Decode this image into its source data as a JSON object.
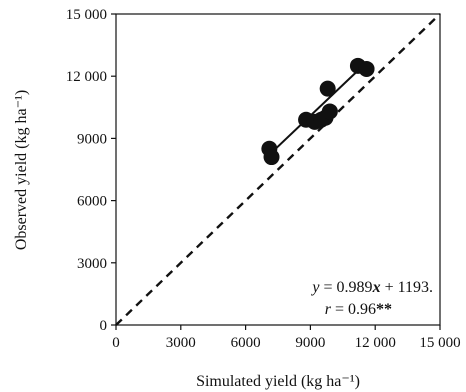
{
  "chart_data": {
    "type": "scatter",
    "xlabel": "Simulated yield (kg ha⁻¹)",
    "ylabel": "Observed yield (kg ha⁻¹)",
    "xlim": [
      0,
      15000
    ],
    "ylim": [
      0,
      15000
    ],
    "x_ticks": [
      0,
      3000,
      6000,
      9000,
      12000,
      15000
    ],
    "y_ticks": [
      0,
      3000,
      6000,
      9000,
      12000,
      15000
    ],
    "x_tick_labels": [
      "0",
      "3000",
      "6000",
      "9000",
      "12 000",
      "15 000"
    ],
    "y_tick_labels": [
      "0",
      "3000",
      "6000",
      "9000",
      "12 000",
      "15 000"
    ],
    "points": [
      {
        "x": 7100,
        "y": 8500
      },
      {
        "x": 7200,
        "y": 8100
      },
      {
        "x": 8800,
        "y": 9900
      },
      {
        "x": 9200,
        "y": 9800
      },
      {
        "x": 9500,
        "y": 9900
      },
      {
        "x": 9700,
        "y": 10000
      },
      {
        "x": 9800,
        "y": 11400
      },
      {
        "x": 9900,
        "y": 10300
      },
      {
        "x": 11200,
        "y": 12500
      },
      {
        "x": 11600,
        "y": 12350
      }
    ],
    "regression": {
      "slope": 0.989,
      "intercept": 1193,
      "x_range": [
        7100,
        11600
      ]
    },
    "reference_line": "1:1 dashed",
    "annotation": {
      "equation": {
        "prefix": "y",
        "body": " = 0.989",
        "var": "x",
        "suffix": " + 1193."
      },
      "r_text": {
        "var": "r",
        "body": " = 0.96",
        "stars": "**"
      }
    },
    "grid": false,
    "legend": "none"
  }
}
